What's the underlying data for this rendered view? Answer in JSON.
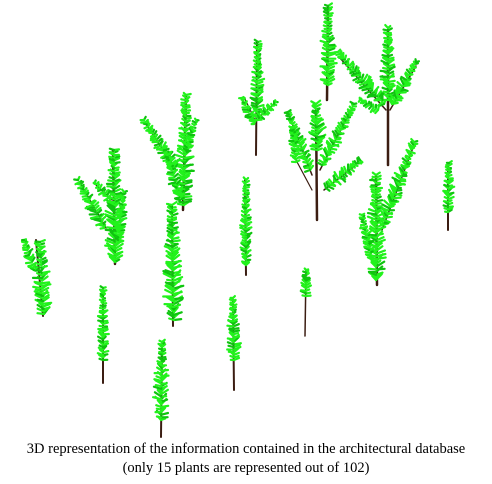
{
  "figure": {
    "caption_line1": "3D representation of the information contained in the architectural database",
    "caption_line2": "(only 15 plants are represented out of 102)"
  },
  "colors": {
    "background": "#ffffff",
    "stem": "#3b1d12",
    "leaf": "#22f21c",
    "leaf_shade": "#0fc40f"
  }
}
